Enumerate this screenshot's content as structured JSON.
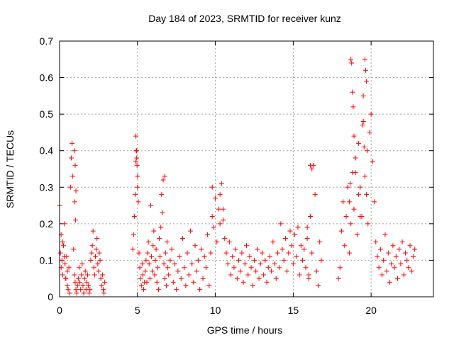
{
  "chart_data": {
    "type": "scatter",
    "title": "Day 184 of 2023, SRMTID for receiver kunz",
    "xlabel": "GPS time / hours",
    "ylabel": "SRMTID / TECUs",
    "xlim": [
      0,
      24
    ],
    "ylim": [
      0,
      0.7
    ],
    "xticks": [
      0,
      5,
      10,
      15,
      20
    ],
    "yticks": [
      0,
      0.1,
      0.2,
      0.3,
      0.4,
      0.5,
      0.6,
      0.7
    ],
    "xtick_labels": [
      "0",
      "5",
      "10",
      "15",
      "20"
    ],
    "ytick_labels": [
      "0",
      "0.1",
      "0.2",
      "0.3",
      "0.4",
      "0.5",
      "0.6",
      "0.7"
    ],
    "grid": true,
    "marker": "+",
    "color": "#ff0000",
    "series": [
      {
        "name": "SRMTID",
        "x": [
          0.0,
          0.05,
          0.1,
          0.15,
          0.2,
          0.25,
          0.3,
          0.35,
          0.4,
          0.45,
          0.5,
          0.55,
          0.6,
          0.65,
          0.7,
          0.75,
          0.8,
          0.85,
          0.9,
          0.95,
          1.0,
          1.05,
          1.1,
          1.15,
          1.2,
          1.25,
          1.3,
          1.35,
          1.4,
          1.45,
          1.5,
          1.55,
          1.6,
          1.65,
          1.7,
          1.75,
          1.8,
          1.85,
          1.9,
          1.95,
          2.0,
          2.05,
          2.1,
          2.15,
          2.2,
          2.25,
          2.3,
          2.35,
          2.4,
          2.45,
          2.5,
          2.55,
          2.6,
          2.65,
          2.7,
          2.75,
          2.8,
          2.85,
          2.9,
          0.95,
          1.0,
          1.05,
          0.98,
          1.02,
          0.1,
          0.2,
          0.3,
          0.4,
          0.5,
          4.7,
          4.75,
          4.8,
          4.85,
          4.9,
          4.95,
          5.0,
          5.05,
          5.1,
          5.15,
          5.2,
          5.25,
          5.3,
          5.35,
          5.4,
          5.45,
          5.5,
          5.55,
          5.6,
          5.65,
          5.7,
          5.75,
          5.8,
          5.85,
          5.9,
          5.95,
          6.0,
          6.05,
          6.1,
          6.15,
          6.2,
          6.25,
          6.3,
          6.35,
          6.4,
          6.45,
          6.5,
          6.55,
          6.6,
          6.65,
          6.7,
          6.75,
          6.8,
          6.85,
          6.9,
          6.95,
          7.0,
          7.1,
          7.2,
          7.3,
          7.4,
          7.5,
          7.6,
          7.7,
          7.8,
          7.9,
          8.0,
          8.1,
          8.2,
          8.3,
          8.4,
          8.5,
          8.6,
          8.7,
          8.8,
          8.9,
          9.0,
          9.1,
          9.2,
          9.3,
          9.4,
          9.5,
          9.6,
          9.7,
          9.8,
          9.9,
          10.0,
          10.1,
          10.2,
          10.3,
          10.4,
          10.5,
          10.6,
          10.7,
          10.8,
          10.9,
          11.0,
          11.1,
          11.2,
          11.3,
          11.4,
          11.5,
          11.6,
          11.7,
          11.8,
          11.9,
          12.0,
          12.1,
          12.2,
          12.3,
          12.4,
          12.5,
          12.6,
          12.7,
          12.8,
          12.9,
          13.0,
          13.1,
          13.2,
          13.3,
          13.4,
          13.5,
          13.6,
          13.7,
          13.8,
          13.9,
          14.0,
          14.1,
          14.2,
          14.3,
          14.4,
          14.5,
          14.6,
          14.7,
          14.8,
          14.9,
          15.0,
          15.1,
          15.2,
          15.3,
          15.4,
          15.5,
          15.6,
          15.7,
          15.8,
          15.9,
          16.0,
          16.1,
          16.2,
          16.3,
          16.4,
          16.5,
          16.6,
          16.7,
          16.8,
          17.9,
          18.0,
          18.1,
          18.2,
          18.3,
          18.4,
          18.5,
          18.6,
          18.7,
          18.8,
          18.9,
          19.0,
          19.1,
          19.2,
          19.3,
          19.4,
          19.5,
          19.6,
          19.7,
          19.8,
          19.9,
          20.0,
          20.1,
          20.2,
          20.3,
          20.4,
          20.5,
          20.6,
          20.7,
          20.8,
          20.9,
          21.0,
          21.1,
          21.2,
          21.3,
          21.4,
          21.5,
          21.6,
          21.7,
          21.8,
          21.9,
          22.0,
          22.1,
          22.2,
          22.3,
          22.4,
          22.5,
          22.6,
          22.7,
          22.8,
          18.7,
          18.75,
          18.8,
          19.6,
          19.65,
          19.7,
          19.5,
          18.85,
          18.9,
          19.0,
          19.45,
          19.55,
          19.75,
          18.65,
          18.6,
          19.2,
          19.3,
          4.9,
          4.92,
          4.95,
          4.97,
          5.0,
          6.75,
          10.3,
          10.5,
          9.8,
          16.1,
          16.2,
          15.9,
          16.0
        ],
        "y": [
          0.25,
          0.12,
          0.08,
          0.1,
          0.06,
          0.14,
          0.2,
          0.09,
          0.05,
          0.11,
          0.07,
          0.02,
          0.08,
          0.01,
          0.3,
          0.38,
          0.42,
          0.33,
          0.13,
          0.06,
          0.04,
          0.02,
          0.01,
          0.03,
          0.05,
          0.08,
          0.04,
          0.02,
          0.06,
          0.09,
          0.03,
          0.01,
          0.05,
          0.07,
          0.02,
          0.04,
          0.06,
          0.03,
          0.01,
          0.02,
          0.1,
          0.12,
          0.14,
          0.18,
          0.08,
          0.06,
          0.11,
          0.13,
          0.16,
          0.09,
          0.07,
          0.12,
          0.1,
          0.05,
          0.03,
          0.06,
          0.02,
          0.01,
          0.04,
          0.4,
          0.36,
          0.29,
          0.26,
          0.21,
          0.17,
          0.15,
          0.11,
          0.05,
          0.03,
          0.13,
          0.17,
          0.22,
          0.28,
          0.37,
          0.4,
          0.33,
          0.26,
          0.12,
          0.08,
          0.05,
          0.03,
          0.09,
          0.06,
          0.02,
          0.04,
          0.07,
          0.1,
          0.04,
          0.12,
          0.15,
          0.09,
          0.05,
          0.25,
          0.11,
          0.07,
          0.14,
          0.18,
          0.06,
          0.1,
          0.13,
          0.04,
          0.08,
          0.02,
          0.16,
          0.11,
          0.19,
          0.28,
          0.23,
          0.32,
          0.09,
          0.05,
          0.12,
          0.03,
          0.15,
          0.08,
          0.06,
          0.1,
          0.13,
          0.04,
          0.09,
          0.02,
          0.07,
          0.11,
          0.05,
          0.16,
          0.08,
          0.03,
          0.12,
          0.06,
          0.18,
          0.09,
          0.04,
          0.14,
          0.07,
          0.1,
          0.02,
          0.13,
          0.05,
          0.11,
          0.08,
          0.17,
          0.03,
          0.12,
          0.22,
          0.19,
          0.27,
          0.15,
          0.24,
          0.2,
          0.31,
          0.21,
          0.16,
          0.12,
          0.09,
          0.15,
          0.06,
          0.11,
          0.08,
          0.13,
          0.05,
          0.1,
          0.07,
          0.12,
          0.04,
          0.09,
          0.14,
          0.06,
          0.11,
          0.08,
          0.03,
          0.1,
          0.07,
          0.13,
          0.05,
          0.09,
          0.12,
          0.06,
          0.1,
          0.04,
          0.08,
          0.11,
          0.07,
          0.15,
          0.09,
          0.05,
          0.12,
          0.08,
          0.2,
          0.13,
          0.1,
          0.16,
          0.07,
          0.12,
          0.18,
          0.14,
          0.09,
          0.17,
          0.11,
          0.19,
          0.06,
          0.14,
          0.1,
          0.13,
          0.08,
          0.16,
          0.05,
          0.22,
          0.12,
          0.36,
          0.28,
          0.07,
          0.03,
          0.15,
          0.1,
          0.05,
          0.08,
          0.18,
          0.26,
          0.14,
          0.22,
          0.3,
          0.12,
          0.2,
          0.34,
          0.24,
          0.38,
          0.17,
          0.42,
          0.3,
          0.22,
          0.48,
          0.33,
          0.28,
          0.2,
          0.45,
          0.5,
          0.37,
          0.26,
          0.15,
          0.11,
          0.08,
          0.13,
          0.06,
          0.1,
          0.17,
          0.07,
          0.12,
          0.04,
          0.09,
          0.14,
          0.08,
          0.11,
          0.05,
          0.13,
          0.09,
          0.15,
          0.06,
          0.12,
          0.1,
          0.08,
          0.14,
          0.07,
          0.11,
          0.13,
          0.65,
          0.64,
          0.56,
          0.65,
          0.62,
          0.59,
          0.55,
          0.52,
          0.44,
          0.34,
          0.47,
          0.41,
          0.4,
          0.31,
          0.26,
          0.28,
          0.22,
          0.44,
          0.4,
          0.38,
          0.36,
          0.3,
          0.33,
          0.28,
          0.24,
          0.3,
          0.36,
          0.35,
          0.19,
          0.06
        ]
      }
    ]
  }
}
